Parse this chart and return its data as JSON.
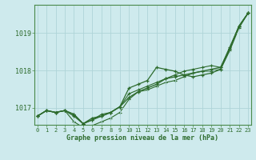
{
  "xlabel": "Graphe pression niveau de la mer (hPa)",
  "background_color": "#ceeaed",
  "grid_color": "#aed4d8",
  "line_color": "#2d6b2d",
  "spine_color": "#4a8a4a",
  "ylim": [
    1016.55,
    1019.75
  ],
  "xlim": [
    -0.3,
    23.3
  ],
  "yticks": [
    1017,
    1018,
    1019
  ],
  "xticks": [
    0,
    1,
    2,
    3,
    4,
    5,
    6,
    7,
    8,
    9,
    10,
    11,
    12,
    13,
    14,
    15,
    16,
    17,
    18,
    19,
    20,
    21,
    22,
    23
  ],
  "hours": [
    0,
    1,
    2,
    3,
    4,
    5,
    6,
    7,
    8,
    9,
    10,
    11,
    12,
    13,
    14,
    15,
    16,
    17,
    18,
    19,
    20,
    21,
    22,
    23
  ],
  "line1": [
    1016.78,
    1016.93,
    1016.88,
    1016.93,
    1016.83,
    1016.58,
    1016.73,
    1016.78,
    1016.88,
    1017.03,
    1017.28,
    1017.43,
    1017.53,
    1017.63,
    1017.78,
    1017.83,
    1017.88,
    1017.93,
    1017.98,
    1018.03,
    1018.08,
    1018.58,
    1019.18,
    1019.53
  ],
  "line2": [
    1016.78,
    1016.93,
    1016.88,
    1016.93,
    1016.78,
    1016.58,
    1016.68,
    1016.78,
    1016.88,
    1017.03,
    1017.53,
    1017.63,
    1017.73,
    1018.08,
    1018.03,
    1017.98,
    1017.88,
    1017.83,
    1017.88,
    1017.93,
    1018.03,
    1018.58,
    1019.18,
    1019.53
  ],
  "line3": [
    1016.78,
    1016.93,
    1016.88,
    1016.93,
    1016.83,
    1016.58,
    1016.68,
    1016.83,
    1016.88,
    1017.03,
    1017.38,
    1017.48,
    1017.58,
    1017.68,
    1017.78,
    1017.88,
    1017.98,
    1018.03,
    1018.08,
    1018.13,
    1018.08,
    1018.63,
    1019.18,
    1019.53
  ],
  "line4": [
    1016.78,
    1016.93,
    1016.88,
    1016.93,
    1016.63,
    1016.48,
    1016.53,
    1016.63,
    1016.73,
    1016.88,
    1017.23,
    1017.43,
    1017.48,
    1017.58,
    1017.68,
    1017.73,
    1017.83,
    1017.93,
    1017.98,
    1017.98,
    1018.03,
    1018.53,
    1019.13,
    1019.53
  ],
  "xlabel_fontsize": 6.0,
  "xtick_fontsize": 5.0,
  "ytick_fontsize": 6.0
}
